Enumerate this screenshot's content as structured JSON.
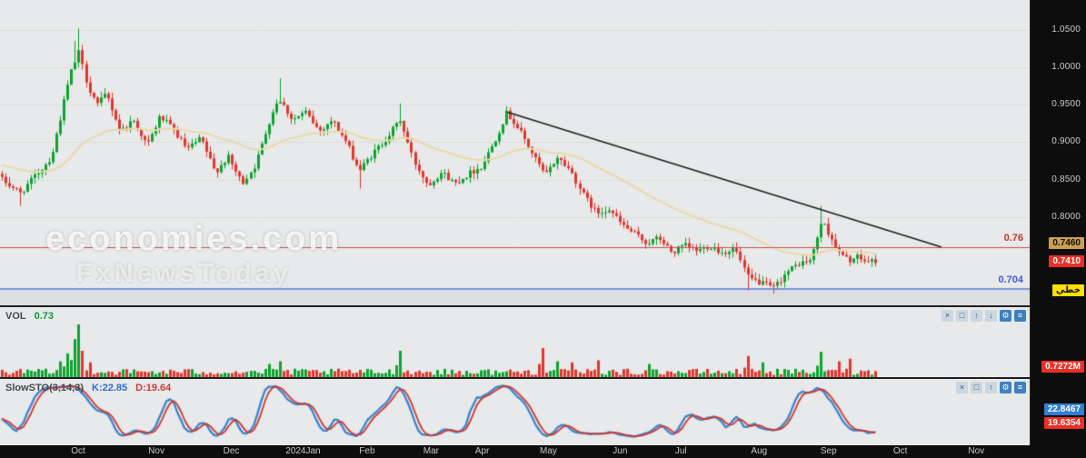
{
  "colors": {
    "chart_bg": "#e7e9ea",
    "axis_bg": "#0d0d0d",
    "candle_up": "#0da32f",
    "candle_down": "#e5352b",
    "ma_line": "#ead9a6",
    "trendline": "#1b1b1b",
    "resistance_line": "#c94f4f",
    "support_line": "#5b79d6",
    "sto_k": "#3c87cf",
    "sto_d": "#d2352b"
  },
  "watermark": {
    "line1": "economies.com",
    "line2": "FxNewsToday"
  },
  "main_chart": {
    "resistance_label": "0.76",
    "support_label": "0.704",
    "badge_prev": "0.7460",
    "badge_last": "0.7410",
    "badge_scale": "خطي",
    "ticks": [
      1.05,
      1.0,
      0.95,
      0.9,
      0.85,
      0.8
    ]
  },
  "volume_panel": {
    "title": "VOL",
    "value": "0.73",
    "badge": "0.7272M",
    "toolbar": [
      {
        "name": "close",
        "glyph": "×",
        "filled": false
      },
      {
        "name": "maximize",
        "glyph": "□",
        "filled": false
      },
      {
        "name": "move-up",
        "glyph": "↑",
        "filled": false
      },
      {
        "name": "move-down",
        "glyph": "↓",
        "filled": false
      },
      {
        "name": "settings",
        "glyph": "⚙",
        "filled": true
      },
      {
        "name": "menu",
        "glyph": "≡",
        "filled": true
      }
    ]
  },
  "sto_panel": {
    "title": "SlowSTO(3,14,3)",
    "k_label": "K:22.85",
    "d_label": "D:19.64",
    "badge_k": "22.8467",
    "badge_d": "19.6354",
    "toolbar": [
      {
        "name": "close",
        "glyph": "×",
        "filled": false
      },
      {
        "name": "maximize",
        "glyph": "□",
        "filled": false
      },
      {
        "name": "move-up",
        "glyph": "↑",
        "filled": false
      },
      {
        "name": "settings",
        "glyph": "⚙",
        "filled": true
      },
      {
        "name": "menu",
        "glyph": "≡",
        "filled": true
      }
    ]
  },
  "time_axis": {
    "labels": [
      {
        "label": "Oct",
        "x": 0.072
      },
      {
        "label": "Nov",
        "x": 0.144
      },
      {
        "label": "Dec",
        "x": 0.213
      },
      {
        "label": "2024Jan",
        "x": 0.279
      },
      {
        "label": "Feb",
        "x": 0.338
      },
      {
        "label": "Mar",
        "x": 0.397
      },
      {
        "label": "Apr",
        "x": 0.444
      },
      {
        "label": "May",
        "x": 0.505
      },
      {
        "label": "Jun",
        "x": 0.571
      },
      {
        "label": "Jul",
        "x": 0.627
      },
      {
        "label": "Aug",
        "x": 0.699
      },
      {
        "label": "Sep",
        "x": 0.763
      },
      {
        "label": "Oct",
        "x": 0.829
      },
      {
        "label": "Nov",
        "x": 0.899
      }
    ]
  },
  "chart_data": {
    "type": "candlestick",
    "title": "Daily price chart with VOL and SlowSTO(3,14,3) panels",
    "x_range_months": [
      "Oct 2023",
      "Sep 2024"
    ],
    "y_domain": [
      0.682,
      1.09
    ],
    "price_ticks": [
      1.05,
      1.0,
      0.95,
      0.9,
      0.85,
      0.8
    ],
    "last_price": 0.741,
    "prev_level": 0.746,
    "num_candles": 240,
    "data_span_frac": 0.852,
    "close_anchors": [
      [
        0,
        0.85
      ],
      [
        0.021,
        0.832
      ],
      [
        0.057,
        0.88
      ],
      [
        0.078,
        0.99
      ],
      [
        0.088,
        1.02
      ],
      [
        0.098,
        0.975
      ],
      [
        0.109,
        0.95
      ],
      [
        0.119,
        0.965
      ],
      [
        0.135,
        0.915
      ],
      [
        0.15,
        0.93
      ],
      [
        0.166,
        0.895
      ],
      [
        0.181,
        0.935
      ],
      [
        0.197,
        0.915
      ],
      [
        0.212,
        0.89
      ],
      [
        0.228,
        0.905
      ],
      [
        0.244,
        0.86
      ],
      [
        0.259,
        0.88
      ],
      [
        0.275,
        0.845
      ],
      [
        0.29,
        0.87
      ],
      [
        0.306,
        0.93
      ],
      [
        0.316,
        0.96
      ],
      [
        0.332,
        0.93
      ],
      [
        0.347,
        0.94
      ],
      [
        0.363,
        0.915
      ],
      [
        0.378,
        0.93
      ],
      [
        0.394,
        0.9
      ],
      [
        0.409,
        0.862
      ],
      [
        0.425,
        0.885
      ],
      [
        0.44,
        0.905
      ],
      [
        0.456,
        0.93
      ],
      [
        0.471,
        0.875
      ],
      [
        0.487,
        0.843
      ],
      [
        0.503,
        0.86
      ],
      [
        0.518,
        0.845
      ],
      [
        0.534,
        0.858
      ],
      [
        0.549,
        0.868
      ],
      [
        0.565,
        0.905
      ],
      [
        0.578,
        0.94
      ],
      [
        0.593,
        0.915
      ],
      [
        0.607,
        0.885
      ],
      [
        0.622,
        0.855
      ],
      [
        0.636,
        0.88
      ],
      [
        0.651,
        0.862
      ],
      [
        0.665,
        0.83
      ],
      [
        0.68,
        0.805
      ],
      [
        0.694,
        0.812
      ],
      [
        0.709,
        0.79
      ],
      [
        0.723,
        0.778
      ],
      [
        0.738,
        0.765
      ],
      [
        0.752,
        0.772
      ],
      [
        0.767,
        0.752
      ],
      [
        0.781,
        0.762
      ],
      [
        0.796,
        0.755
      ],
      [
        0.81,
        0.762
      ],
      [
        0.825,
        0.752
      ],
      [
        0.839,
        0.758
      ],
      [
        0.854,
        0.718
      ],
      [
        0.868,
        0.712
      ],
      [
        0.883,
        0.705
      ],
      [
        0.897,
        0.725
      ],
      [
        0.912,
        0.738
      ],
      [
        0.926,
        0.742
      ],
      [
        0.938,
        0.795
      ],
      [
        0.948,
        0.775
      ],
      [
        0.958,
        0.752
      ],
      [
        0.969,
        0.742
      ],
      [
        0.979,
        0.746
      ],
      [
        0.99,
        0.74
      ],
      [
        1.0,
        0.742
      ]
    ],
    "special_wicks": {
      "highs": [
        [
          0.082,
          1.035
        ],
        [
          0.088,
          1.052
        ],
        [
          0.093,
          1.03
        ],
        [
          0.316,
          0.985
        ],
        [
          0.456,
          0.952
        ],
        [
          0.578,
          0.948
        ],
        [
          0.938,
          0.815
        ]
      ],
      "lows": [
        [
          0.021,
          0.815
        ],
        [
          0.409,
          0.838
        ],
        [
          0.854,
          0.702
        ],
        [
          0.883,
          0.698
        ]
      ]
    },
    "overlays": {
      "ema_period": 45,
      "ema_init": 0.87,
      "trendline": {
        "x1": 0.493,
        "price1": 0.94,
        "x2": 0.914,
        "price2": 0.76
      },
      "resistance": 0.76,
      "support": 0.704
    },
    "volume": {
      "last_label": "0.7272M",
      "spikes": [
        [
          0.068,
          0.3
        ],
        [
          0.075,
          0.45
        ],
        [
          0.082,
          0.72
        ],
        [
          0.088,
          1.0
        ],
        [
          0.093,
          0.5
        ],
        [
          0.1,
          0.28
        ],
        [
          0.306,
          0.25
        ],
        [
          0.316,
          0.3
        ],
        [
          0.456,
          0.5
        ],
        [
          0.62,
          0.55
        ],
        [
          0.636,
          0.3
        ],
        [
          0.651,
          0.28
        ],
        [
          0.68,
          0.32
        ],
        [
          0.74,
          0.25
        ],
        [
          0.855,
          0.4
        ],
        [
          0.87,
          0.28
        ],
        [
          0.938,
          0.48
        ],
        [
          0.958,
          0.3
        ],
        [
          0.97,
          0.35
        ]
      ]
    },
    "stochastic": {
      "k_period": 14,
      "slowing": 3,
      "d_period": 3,
      "k_last": 22.85,
      "d_last": 19.64
    }
  }
}
